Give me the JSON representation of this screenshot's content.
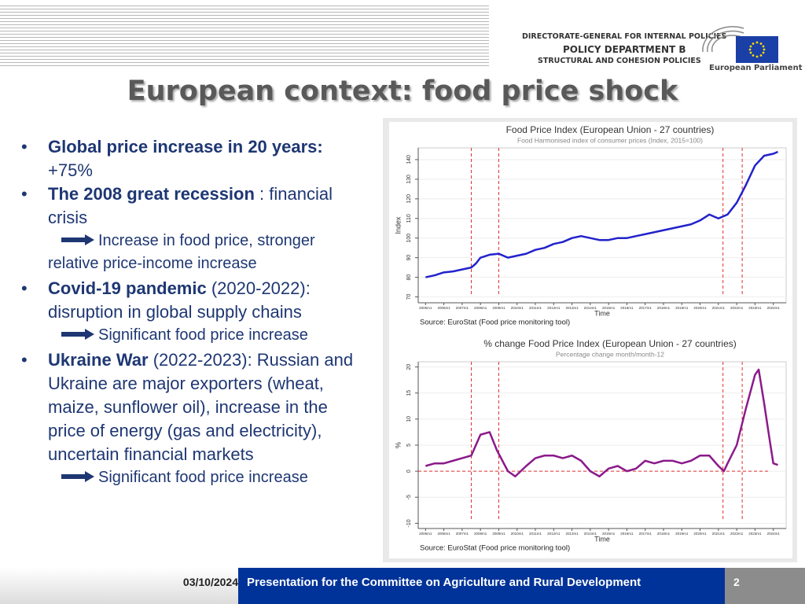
{
  "header": {
    "directorate": "DIRECTORATE-GENERAL FOR INTERNAL POLICIES",
    "department": "POLICY DEPARTMENT B",
    "unit": "STRUCTURAL AND COHESION POLICIES",
    "institution": "European Parliament"
  },
  "title": "European context: food price shock",
  "bullets": [
    {
      "bold": "Global price increase in 20 years:",
      "text": "+75%"
    },
    {
      "bold": "The 2008 great recession",
      "text": ": financial crisis",
      "note": "Increase in food price, stronger relative price-income increase"
    },
    {
      "bold": "Covid-19 pandemic",
      "text": "(2020-2022): disruption in global supply chains",
      "note": "Significant food price increase"
    },
    {
      "bold": "Ukraine War",
      "text": "(2022-2023): Russian and Ukraine are major exporters (wheat, maize, sunflower oil), increase in the price of energy (gas and electricity), uncertain financial markets",
      "note": "Significant food price increase"
    }
  ],
  "chart_data": [
    {
      "type": "line",
      "title": "Food Price Index (European Union - 27 countries)",
      "subtitle": "Food Harmonised index of consumer prices (Index, 2015=100)",
      "x_label": "Time",
      "y_label": "Index",
      "source": "Source: EuroStat (Food price monitoring tool)",
      "color": "#2222cc",
      "x": [
        2005,
        2005.5,
        2006,
        2006.5,
        2007,
        2007.5,
        2007.75,
        2008,
        2008.5,
        2009,
        2009.5,
        2010,
        2010.5,
        2011,
        2011.5,
        2012,
        2012.5,
        2013,
        2013.5,
        2014,
        2014.5,
        2015,
        2015.5,
        2016,
        2016.5,
        2017,
        2017.5,
        2018,
        2018.5,
        2019,
        2019.5,
        2020,
        2020.5,
        2021,
        2021.5,
        2022,
        2022.5,
        2023,
        2023.5,
        2024,
        2024.25
      ],
      "values": [
        80,
        81,
        82.5,
        83,
        84,
        85,
        87,
        90,
        91.5,
        92,
        90,
        91,
        92,
        94,
        95,
        97,
        98,
        100,
        101,
        100,
        99,
        99,
        100,
        100,
        101,
        102,
        103,
        104,
        105,
        106,
        107,
        109,
        112,
        110,
        112,
        118,
        127,
        137,
        142,
        143,
        144
      ],
      "xlim": [
        2004.6,
        2024.7
      ],
      "ylim": [
        67,
        146
      ],
      "yticks": [
        70,
        80,
        90,
        100,
        110,
        120,
        130,
        140
      ],
      "xticks": [
        {
          "value": 2005,
          "label": "2005m1"
        },
        {
          "value": 2006,
          "label": "2006m1"
        },
        {
          "value": 2007,
          "label": "2007m1"
        },
        {
          "value": 2008,
          "label": "2008m1"
        },
        {
          "value": 2009,
          "label": "2009m1"
        },
        {
          "value": 2010,
          "label": "2010m1"
        },
        {
          "value": 2011,
          "label": "2011m1"
        },
        {
          "value": 2012,
          "label": "2012m1"
        },
        {
          "value": 2013,
          "label": "2013m1"
        },
        {
          "value": 2014,
          "label": "2014m1"
        },
        {
          "value": 2015,
          "label": "2015m1"
        },
        {
          "value": 2016,
          "label": "2016m1"
        },
        {
          "value": 2017,
          "label": "2017m1"
        },
        {
          "value": 2018,
          "label": "2018m1"
        },
        {
          "value": 2019,
          "label": "2019m1"
        },
        {
          "value": 2020,
          "label": "2020m1"
        },
        {
          "value": 2021,
          "label": "2021m1"
        },
        {
          "value": 2022,
          "label": "2022m1"
        },
        {
          "value": 2023,
          "label": "2023m1"
        },
        {
          "value": 2024,
          "label": "2024m1"
        }
      ],
      "vlines": [
        2007.5,
        2009,
        2021.25,
        2022.3
      ],
      "hlines": [],
      "grid": true
    },
    {
      "type": "line",
      "title": "% change Food Price Index (European Union - 27 countries)",
      "subtitle": "Percentage change month/month-12",
      "x_label": "Time",
      "y_label": "%",
      "source": "Source: EuroStat (Food price monitoring tool)",
      "color": "#8b1a8b",
      "x": [
        2005,
        2005.5,
        2006,
        2006.5,
        2007,
        2007.5,
        2007.75,
        2008,
        2008.5,
        2008.9,
        2009.5,
        2009.9,
        2010.5,
        2011,
        2011.5,
        2012,
        2012.5,
        2013,
        2013.5,
        2014,
        2014.5,
        2015,
        2015.5,
        2016,
        2016.5,
        2017,
        2017.5,
        2018,
        2018.5,
        2019,
        2019.5,
        2020,
        2020.5,
        2021,
        2021.3,
        2021.5,
        2022,
        2022.5,
        2023,
        2023.2,
        2023.5,
        2023.8,
        2024,
        2024.25
      ],
      "values": [
        1,
        1.5,
        1.5,
        2,
        2.5,
        3,
        5,
        7,
        7.5,
        4,
        0,
        -1,
        1,
        2.5,
        3,
        3,
        2.5,
        3,
        2,
        0,
        -1,
        0.5,
        1,
        0,
        0.5,
        2,
        1.5,
        2,
        2,
        1.5,
        2,
        3,
        3,
        1,
        0,
        1.5,
        5,
        12,
        18.5,
        19.5,
        13,
        6,
        1.5,
        1.2
      ],
      "xlim": [
        2004.6,
        2024.7
      ],
      "ylim": [
        -11,
        21
      ],
      "yticks": [
        -10,
        -5,
        0,
        5,
        10,
        15,
        20
      ],
      "xticks": [
        {
          "value": 2005,
          "label": "2005m1"
        },
        {
          "value": 2006,
          "label": "2006m1"
        },
        {
          "value": 2007,
          "label": "2007m1"
        },
        {
          "value": 2008,
          "label": "2008m1"
        },
        {
          "value": 2009,
          "label": "2009m1"
        },
        {
          "value": 2010,
          "label": "2010m1"
        },
        {
          "value": 2011,
          "label": "2011m1"
        },
        {
          "value": 2012,
          "label": "2012m1"
        },
        {
          "value": 2013,
          "label": "2013m1"
        },
        {
          "value": 2014,
          "label": "2014m1"
        },
        {
          "value": 2015,
          "label": "2015m1"
        },
        {
          "value": 2016,
          "label": "2016m1"
        },
        {
          "value": 2017,
          "label": "2017m1"
        },
        {
          "value": 2018,
          "label": "2018m1"
        },
        {
          "value": 2019,
          "label": "2019m1"
        },
        {
          "value": 2020,
          "label": "2020m1"
        },
        {
          "value": 2021,
          "label": "2021m1"
        },
        {
          "value": 2022,
          "label": "2022m1"
        },
        {
          "value": 2023,
          "label": "2023m1"
        },
        {
          "value": 2024,
          "label": "2024m1"
        }
      ],
      "vlines": [
        2007.5,
        2009,
        2021.25,
        2022.3
      ],
      "hlines": [
        0
      ],
      "grid": true
    }
  ],
  "footer": {
    "date": "03/10/2024",
    "text": "Presentation for the Committee on Agriculture and Rural Development",
    "page": "2"
  }
}
